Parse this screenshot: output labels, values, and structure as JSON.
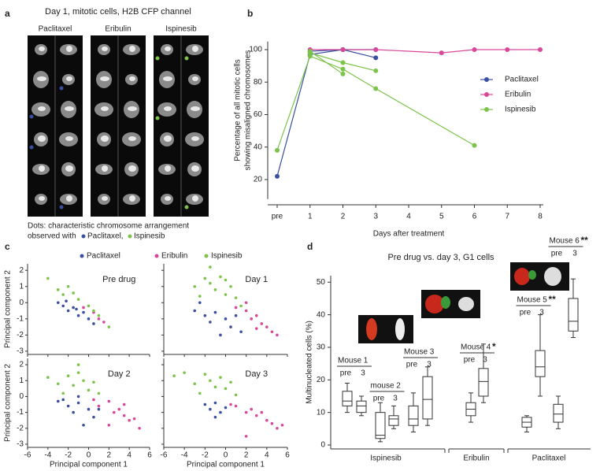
{
  "panel_letters": [
    "a",
    "b",
    "c",
    "d"
  ],
  "panel_a": {
    "title": "Day 1, mitotic cells, H2B CFP channel",
    "columns": [
      "Paclitaxel",
      "Eribulin",
      "Ispinesib"
    ],
    "caption_line1": "Dots: characteristic chromosome arrangement",
    "caption_line2": "observed with",
    "caption_item1": "Paclitaxel,",
    "caption_item2": "Ispinesib"
  },
  "chart_data": [
    {
      "type": "line",
      "y_label_line1": "Percentage of all mitotic cells",
      "y_label_line2": "showing misaligned chromosomes",
      "x_label": "Days after treatment",
      "xlim": [
        0,
        8
      ],
      "xticks": [
        {
          "value": 0,
          "label": "pre"
        },
        1,
        2,
        3,
        4,
        5,
        6,
        7,
        8
      ],
      "ylim": [
        8,
        105
      ],
      "yticks": [
        20,
        40,
        60,
        80,
        100
      ],
      "series": [
        {
          "name": "Paclitaxel",
          "color": "#3b4fa0",
          "lines": [
            {
              "x": [
                0,
                1,
                2,
                3
              ],
              "values": [
                22,
                97,
                100,
                95
              ]
            },
            {
              "x": [
                1,
                2,
                3
              ],
              "values": [
                99,
                100,
                100
              ]
            }
          ]
        },
        {
          "name": "Eribulin",
          "color": "#d8479a",
          "lines": [
            {
              "x": [
                1,
                2,
                3,
                5,
                6,
                7,
                8
              ],
              "values": [
                100,
                100,
                100,
                98,
                100,
                100,
                100
              ]
            }
          ]
        },
        {
          "name": "Ispinesib",
          "color": "#7cc34a",
          "lines": [
            {
              "x": [
                0,
                1,
                2,
                3,
                6
              ],
              "values": [
                38,
                96,
                88,
                76,
                41
              ]
            },
            {
              "x": [
                1,
                2,
                3
              ],
              "values": [
                98,
                92,
                87
              ]
            },
            {
              "x": [
                1,
                2
              ],
              "values": [
                99,
                85
              ]
            }
          ]
        }
      ]
    },
    {
      "type": "scatter",
      "x_label": "Principal component 1",
      "y_label": "Principal component 2",
      "xlim": [
        -6,
        6
      ],
      "xticks": [
        -6,
        -4,
        -2,
        0,
        2,
        4,
        6
      ],
      "ylim": [
        -3.2,
        2.4
      ],
      "yticks": [
        2,
        1,
        0,
        -1,
        -2,
        -3
      ],
      "series": [
        {
          "name": "Paclitaxel",
          "color": "#3b4fa0"
        },
        {
          "name": "Eribulin",
          "color": "#d8479a"
        },
        {
          "name": "Ispinesib",
          "color": "#7cc34a"
        }
      ],
      "panels": [
        {
          "title": "Pre drug",
          "points": [
            {
              "x": [
                -3,
                -2.5,
                -2,
                -1.5,
                -1,
                -0.5,
                0,
                -2.2,
                -1.2,
                0.5
              ],
              "y": [
                0,
                -0.2,
                -0.5,
                -0.3,
                -0.8,
                -0.6,
                -1,
                0.1,
                -0.4,
                -1.3
              ]
            },
            {
              "x": [
                0.5,
                1,
                1.5,
                -0.5
              ],
              "y": [
                -0.6,
                -1,
                -1.2,
                -0.3
              ]
            },
            {
              "x": [
                -4,
                -3,
                -2.5,
                -1.5,
                -1,
                0,
                0.5,
                1,
                -2,
                2
              ],
              "y": [
                1.5,
                0.8,
                0.5,
                0.6,
                0.2,
                -0.2,
                -0.5,
                -0.8,
                1,
                -1.5
              ]
            }
          ]
        },
        {
          "title": "Day 1",
          "points": [
            {
              "x": [
                -3,
                -2,
                -1.5,
                -1,
                0,
                0.5,
                1,
                -0.5,
                -2.5,
                1.5
              ],
              "y": [
                -0.5,
                -0.8,
                -1.2,
                -0.6,
                -1,
                -1.5,
                -0.8,
                -2,
                0,
                -1.8
              ]
            },
            {
              "x": [
                1,
                2,
                2.5,
                3,
                3.5,
                4,
                4.5,
                5,
                2,
                3
              ],
              "y": [
                -0.3,
                -0.5,
                -1,
                -0.8,
                -1.3,
                -1.5,
                -1.8,
                -2,
                0,
                -1.6
              ]
            },
            {
              "x": [
                -3,
                -2,
                -1.5,
                -1,
                -0.5,
                0,
                0.5,
                1,
                -2.5,
                -1.5,
                0,
                1.5
              ],
              "y": [
                1,
                1.5,
                1.2,
                0.8,
                1.6,
                0.5,
                1,
                0.3,
                0.4,
                2.2,
                1.4,
                -0.2
              ]
            }
          ]
        },
        {
          "title": "Day 2",
          "points": [
            {
              "x": [
                -3,
                -2,
                -1.5,
                -1,
                0,
                0.5,
                -2.5,
                -0.5,
                1,
                -1
              ],
              "y": [
                -0.3,
                -0.6,
                -1,
                -0.4,
                -0.8,
                -1.3,
                -0.2,
                -1.8,
                -0.8,
                0
              ]
            },
            {
              "x": [
                0.5,
                1,
                2,
                2.5,
                3,
                3.5,
                4,
                4.5,
                5,
                2,
                3.5
              ],
              "y": [
                -0.2,
                -0.6,
                -0.3,
                -1,
                -0.8,
                -1.2,
                -1.5,
                -1.4,
                -2,
                -1.8,
                -0.5
              ]
            },
            {
              "x": [
                -3,
                -2,
                -1.5,
                -1,
                -0.5,
                0,
                0.5,
                -2.5,
                -1,
                1,
                -4
              ],
              "y": [
                0.8,
                1.3,
                0.7,
                1.5,
                1,
                0.4,
                0.9,
                0.2,
                2,
                0.2,
                1.2
              ]
            }
          ]
        },
        {
          "title": "Day 3",
          "points": [
            {
              "x": [
                -2,
                -1.5,
                -1,
                -0.5,
                0,
                -1
              ],
              "y": [
                -0.5,
                -0.8,
                -0.4,
                -1,
                -0.7,
                -1.3
              ]
            },
            {
              "x": [
                0.5,
                1,
                2,
                2.5,
                3,
                3.5,
                4,
                4.5,
                5,
                5.5,
                2
              ],
              "y": [
                -0.5,
                -0.6,
                -1,
                -0.8,
                -1.2,
                -1,
                -1.5,
                -1.7,
                -2,
                -1.8,
                -2.5
              ]
            },
            {
              "x": [
                -4,
                -3,
                -2,
                -1.5,
                -1,
                -0.5,
                0,
                0.5,
                -5,
                -2.5,
                1
              ],
              "y": [
                1.5,
                0.8,
                1.4,
                1,
                0.6,
                1.2,
                0.5,
                0.9,
                1.3,
                0.2,
                0.1
              ]
            }
          ]
        }
      ]
    },
    {
      "type": "box",
      "title": "Pre drug vs. day 3, G1 cells",
      "y_label": "Multinucleated cells (%)",
      "ylim": [
        0,
        52
      ],
      "yticks": [
        0,
        10,
        20,
        30,
        40,
        50
      ],
      "x_labels": [
        "pre",
        "3"
      ],
      "groups": [
        {
          "name": "Ispinesib",
          "mice": [
            {
              "label": "Mouse 1",
              "pre": {
                "min": 10,
                "q1": 12,
                "median": 13.5,
                "q3": 16.5,
                "max": 19
              },
              "day3": {
                "min": 9,
                "q1": 10,
                "median": 12,
                "q3": 13.5,
                "max": 15
              }
            },
            {
              "label": "mouse 2",
              "pre": {
                "min": 1,
                "q1": 2,
                "median": 3,
                "q3": 10,
                "max": 13
              },
              "day3": {
                "min": 5,
                "q1": 6,
                "median": 8,
                "q3": 9,
                "max": 12
              }
            },
            {
              "label": "Mouse 3",
              "pre": {
                "min": 4,
                "q1": 6,
                "median": 8,
                "q3": 12,
                "max": 16
              },
              "day3": {
                "min": 6,
                "q1": 8,
                "median": 14,
                "q3": 21,
                "max": 24
              }
            }
          ]
        },
        {
          "name": "Eribulin",
          "mice": [
            {
              "label": "Mouse 4",
              "significance": "*",
              "pre": {
                "min": 7,
                "q1": 9,
                "median": 11,
                "q3": 13,
                "max": 16
              },
              "day3": {
                "min": 13,
                "q1": 15,
                "median": 19.5,
                "q3": 23.5,
                "max": 31
              }
            }
          ]
        },
        {
          "name": "Paclitaxel",
          "mice": [
            {
              "label": "Mouse 5",
              "significance": "**",
              "pre": {
                "min": 4,
                "q1": 5.5,
                "median": 7,
                "q3": 8.5,
                "max": 9
              },
              "day3": {
                "min": 15,
                "q1": 21,
                "median": 24,
                "q3": 29,
                "max": 40
              }
            },
            {
              "label": "Mouse 6",
              "significance": "**",
              "pre": {
                "min": 5,
                "q1": 7,
                "median": 9.5,
                "q3": 12.5,
                "max": 15
              },
              "day3": {
                "min": 33,
                "q1": 35,
                "median": 38,
                "q3": 45,
                "max": 51
              }
            }
          ]
        }
      ]
    }
  ]
}
